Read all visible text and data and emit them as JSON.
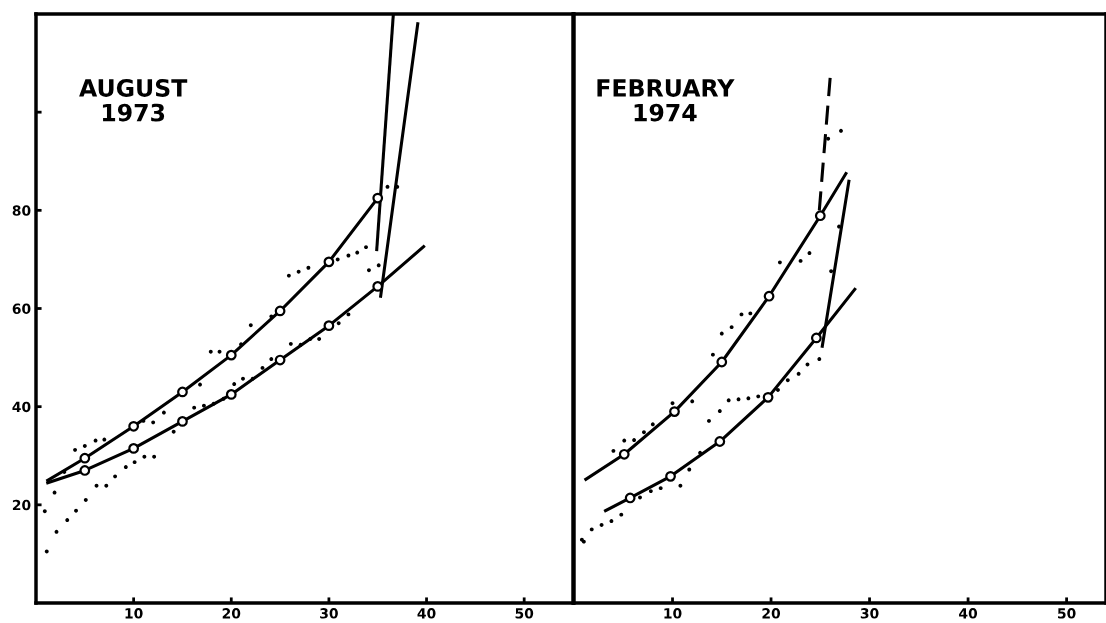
{
  "chart_data": [
    {
      "type": "line",
      "title": "AUGUST\n1973",
      "xlim": [
        0,
        55
      ],
      "ylim": [
        0,
        120
      ],
      "xticks": [
        10,
        20,
        30,
        40,
        50
      ],
      "yticks": [
        20,
        40,
        60,
        80,
        {
          "value": 100,
          "label": null
        }
      ],
      "grid": false,
      "legend": false,
      "series": [
        {
          "type": "line",
          "color": "#000000",
          "x": [
            1.2,
            5,
            10,
            15,
            20,
            25,
            30,
            35
          ],
          "values": [
            25,
            29.5,
            36,
            43,
            50.5,
            59.5,
            69.5,
            82.5
          ]
        },
        {
          "type": "line",
          "color": "#000000",
          "x": [
            34.9,
            36.6
          ],
          "values": [
            72,
            120
          ]
        },
        {
          "type": "line",
          "color": "#000000",
          "x": [
            1.2,
            5,
            10,
            15,
            20,
            25,
            30,
            35,
            39.7
          ],
          "values": [
            24.5,
            27,
            31.5,
            37,
            42.5,
            49.5,
            56.5,
            64.5,
            72.6
          ]
        },
        {
          "type": "line",
          "color": "#000000",
          "x": [
            35.3,
            39.1
          ],
          "values": [
            62.5,
            118
          ]
        },
        {
          "type": "scatter",
          "marker": "circle",
          "color": "#000000",
          "x": [
            5,
            10,
            15,
            20,
            25,
            30,
            35,
            5,
            10,
            15,
            20,
            25,
            30,
            35
          ],
          "values": [
            29.5,
            36,
            43,
            50.5,
            59.5,
            69.5,
            82.5,
            27,
            31.5,
            37,
            42.5,
            49.5,
            56.5,
            64.5
          ]
        },
        {
          "type": "scatter",
          "color": "#000000",
          "x": [
            1.9,
            2.9,
            4.0,
            5.0,
            6.1,
            7.0,
            11,
            12,
            13.1,
            16.8,
            17.9,
            18.8,
            21,
            22,
            24.1,
            25.9,
            26.9,
            27.9,
            30.9,
            32,
            32.9,
            33.8,
            36,
            37
          ],
          "values": [
            22.5,
            26.7,
            31.2,
            32,
            33.1,
            33.3,
            37.1,
            36.8,
            38.8,
            44.5,
            51.2,
            51.2,
            52.7,
            56.6,
            58.4,
            66.7,
            67.5,
            68.3,
            70,
            70.8,
            71.4,
            72.5,
            84.8,
            84.8
          ]
        },
        {
          "type": "scatter",
          "color": "#000000",
          "x": [
            0.9,
            1.1,
            2.1,
            3.2,
            4.1,
            5.1,
            6.2,
            7.2,
            8.1,
            9.2,
            10.1,
            11.1,
            12.1,
            14.1,
            16.2,
            17.2,
            18.2,
            19.2,
            20.3,
            21.2,
            22.2,
            23.2,
            24.1,
            26.1,
            27.1,
            28.1,
            29.0,
            31,
            32,
            34.1,
            35.1
          ],
          "values": [
            18.7,
            10.5,
            14.5,
            16.9,
            18.8,
            21,
            23.9,
            23.9,
            25.8,
            27.7,
            28.7,
            29.8,
            29.8,
            34.9,
            39.8,
            40.2,
            40.6,
            41.6,
            44.6,
            45.7,
            45.7,
            47.9,
            49.7,
            52.8,
            52.6,
            53.8,
            53.8,
            57,
            58.8,
            67.8,
            68.8
          ]
        }
      ]
    },
    {
      "type": "line",
      "title": "FEBRUARY\n1974",
      "xlim": [
        0,
        54
      ],
      "ylim": [
        0,
        120
      ],
      "xticks": [
        10,
        20,
        30,
        40,
        50
      ],
      "tick_labels": "x",
      "grid": false,
      "legend": false,
      "series": [
        {
          "type": "line",
          "color": "#000000",
          "x": [
            1.2,
            5.1,
            10.2,
            15,
            19.8,
            25.0,
            27.6
          ],
          "values": [
            25.2,
            30.3,
            39,
            49.1,
            62.5,
            78.9,
            87.5
          ]
        },
        {
          "line_style": "dashed",
          "color": "#000000",
          "x": [
            24.9,
            26
          ],
          "values": [
            80,
            107
          ]
        },
        {
          "type": "line",
          "color": "#000000",
          "x": [
            3.2,
            5.7,
            9.8,
            14.8,
            19.7,
            24.6,
            28.5
          ],
          "values": [
            18.8,
            21.4,
            25.8,
            32.9,
            41.9,
            54,
            63.9
          ]
        },
        {
          "type": "line",
          "color": "#000000",
          "x": [
            25.2,
            27.9
          ],
          "values": [
            52.3,
            85.9
          ]
        },
        {
          "type": "scatter",
          "marker": "circle",
          "color": "#000000",
          "x": [
            5.1,
            10.2,
            15,
            19.8,
            25.0,
            5.7,
            9.8,
            14.8,
            19.7,
            24.6
          ],
          "values": [
            30.3,
            39,
            49.1,
            62.5,
            78.9,
            21.4,
            25.8,
            32.9,
            41.9,
            54
          ]
        },
        {
          "type": "scatter",
          "color": "#000000",
          "x": [
            4.0,
            5.1,
            6.1,
            7.1,
            8,
            10,
            12,
            14.1,
            15,
            16,
            17,
            17.9,
            20.9,
            23,
            23.9,
            25.8,
            27.1
          ],
          "values": [
            31,
            33.1,
            33.2,
            34.8,
            36.4,
            40.7,
            41.1,
            50.6,
            54.9,
            56.2,
            58.8,
            59,
            69.4,
            69.7,
            71.3,
            94.6,
            96.2
          ]
        },
        {
          "type": "scatter",
          "color": "#000000",
          "x": [
            0.8,
            1.0,
            1.8,
            2.8,
            3.8,
            4.8,
            6.7,
            7.8,
            8.8,
            10.8,
            11.7,
            12.8,
            13.7,
            14.8,
            15.7,
            16.7,
            17.7,
            18.7,
            20.7,
            21.7,
            22.8,
            23.7,
            24.9,
            26.1,
            26.9
          ],
          "values": [
            12.9,
            12.5,
            15,
            15.9,
            16.7,
            18,
            21.5,
            22.8,
            23.4,
            23.9,
            27.2,
            30.6,
            37.1,
            39.1,
            41.3,
            41.5,
            41.7,
            42.1,
            43.4,
            45.4,
            46.7,
            48.6,
            49.7,
            67.6,
            76.7
          ]
        }
      ]
    }
  ]
}
